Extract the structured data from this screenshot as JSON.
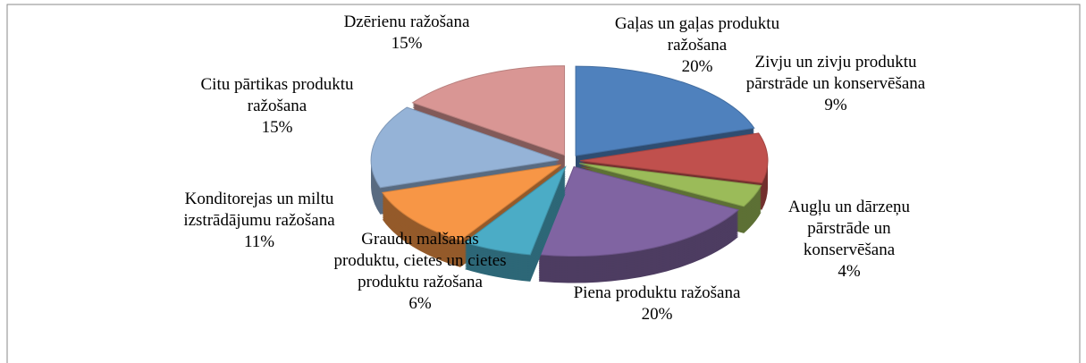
{
  "chart_data": {
    "type": "pie",
    "categories": [
      "Gaļas un gaļas produktu ražošana",
      "Zivju un zivju produktu pārstrāde un konservēšana",
      "Augļu un dārzeņu pārstrāde un konservēšana",
      "Piena produktu ražošana",
      "Graudu malšanas produktu, cietes un cietes produktu ražošana",
      "Konditorejas un miltu izstrādājumu ražošana",
      "Citu pārtikas produktu ražošana",
      "Dzērienu ražošana"
    ],
    "values": [
      20,
      9,
      4,
      20,
      6,
      11,
      15,
      15
    ],
    "value_labels": [
      "20%",
      "9%",
      "4%",
      "20%",
      "6%",
      "11%",
      "15%",
      "15%"
    ],
    "colors": [
      "#4f81bd",
      "#c0504d",
      "#9bbb59",
      "#8064a2",
      "#4bacc6",
      "#f79646",
      "#95b3d7",
      "#d99694"
    ]
  }
}
